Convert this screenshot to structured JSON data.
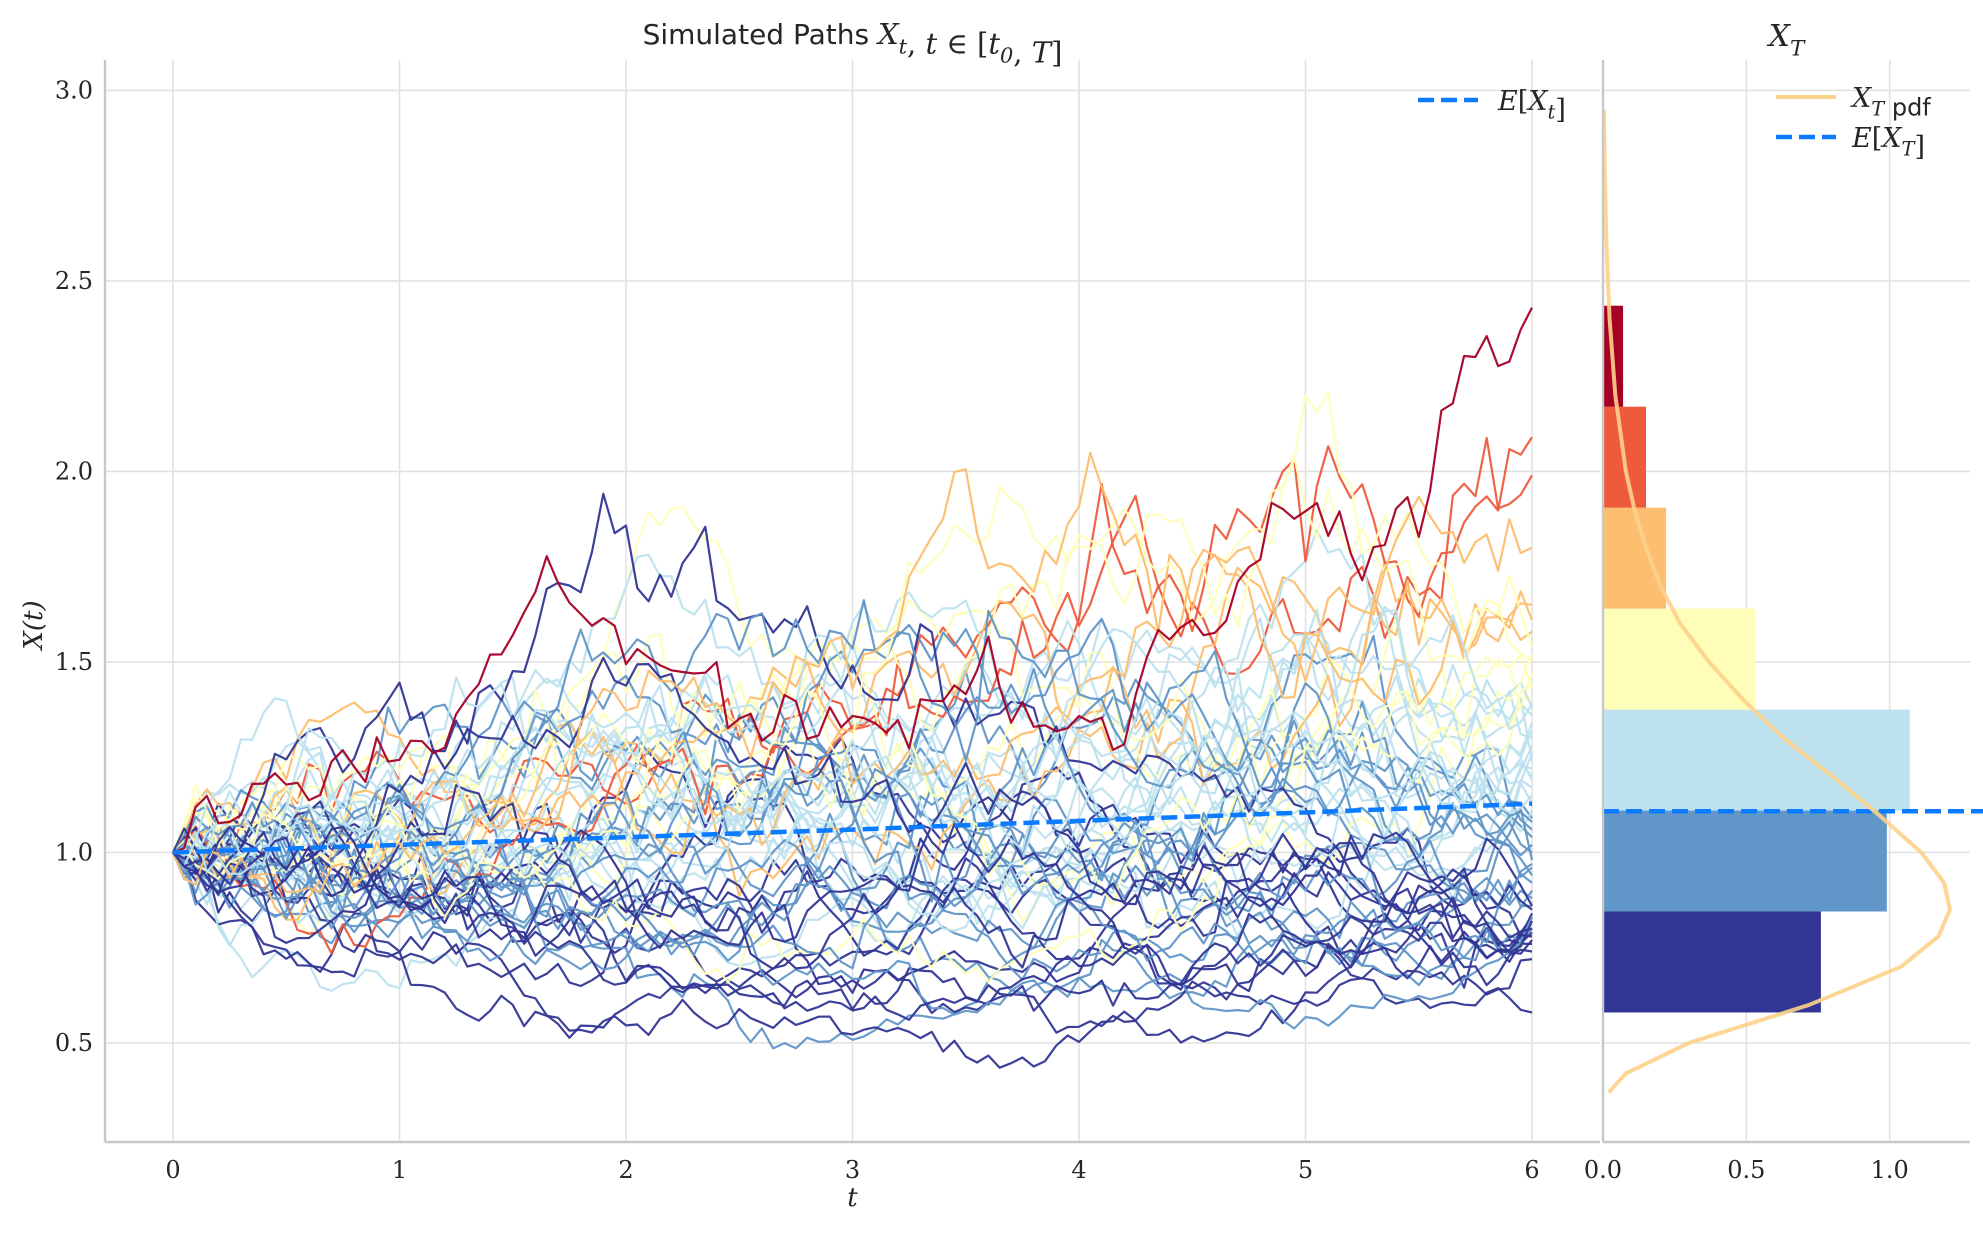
{
  "chart_data": [
    {
      "type": "line",
      "title_prefix": "Simulated Paths",
      "title_math": "X_t, t ∈ [t_0, T]",
      "xlabel": "t",
      "ylabel": "X(t)",
      "xlim": [
        -0.3,
        6.3
      ],
      "ylim": [
        0.24,
        3.08
      ],
      "x_ticks": [
        0,
        1,
        2,
        3,
        4,
        5,
        6
      ],
      "x_tick_labels": [
        "0",
        "1",
        "2",
        "3",
        "4",
        "5",
        "6"
      ],
      "y_ticks": [
        0.5,
        1.0,
        1.5,
        2.0,
        2.5,
        3.0
      ],
      "y_tick_labels": [
        "0.5",
        "1.0",
        "1.5",
        "2.0",
        "2.5",
        "3.0"
      ],
      "grid": true,
      "legend_position": "top-right",
      "legend": [
        {
          "label": "E[X_t]",
          "color": "#0b7bff",
          "style": "dashed"
        }
      ],
      "t_start": 0,
      "t_end": 6,
      "x0": 1.0,
      "expected_path": {
        "x": [
          0,
          1,
          2,
          3,
          4,
          5,
          6
        ],
        "y": [
          1.0,
          1.02,
          1.04,
          1.06,
          1.083,
          1.105,
          1.128
        ],
        "color": "#0b7bff"
      },
      "color_scale": [
        "#313695",
        "#4575b4",
        "#74add1",
        "#abd9e9",
        "#e0f3f8",
        "#ffffbf",
        "#fee090",
        "#fdae61",
        "#f46d43",
        "#d73027",
        "#a50026"
      ],
      "path_colors": [
        "#313695",
        "#313695",
        "#313695",
        "#313695",
        "#313695",
        "#313695",
        "#313695",
        "#313695",
        "#313695",
        "#313695",
        "#313695",
        "#313695",
        "#313695",
        "#313695",
        "#6196c8",
        "#6196c8",
        "#6196c8",
        "#6196c8",
        "#6196c8",
        "#6196c8",
        "#6196c8",
        "#6196c8",
        "#6196c8",
        "#6196c8",
        "#6196c8",
        "#6196c8",
        "#6196c8",
        "#6196c8",
        "#6196c8",
        "#6196c8",
        "#bde2ee",
        "#bde2ee",
        "#bde2ee",
        "#bde2ee",
        "#bde2ee",
        "#bde2ee",
        "#bde2ee",
        "#bde2ee",
        "#bde2ee",
        "#bde2ee",
        "#bde2ee",
        "#bde2ee",
        "#bde2ee",
        "#bde2ee",
        "#bde2ee",
        "#bde2ee",
        "#fefeb9",
        "#fefeb9",
        "#fefeb9",
        "#fefeb9",
        "#fefeb9",
        "#fefeb9",
        "#fefeb9",
        "#fdbe6f",
        "#fdbe6f",
        "#fdbe6f",
        "#fdbe6f",
        "#ee5b3c",
        "#ee5b3c",
        "#a50026"
      ],
      "paths_end_values": [
        0.58,
        0.72,
        0.74,
        0.76,
        0.77,
        0.78,
        0.79,
        0.8,
        0.82,
        0.84,
        0.85,
        0.86,
        0.83,
        0.78,
        0.8,
        0.83,
        0.86,
        0.88,
        0.9,
        0.92,
        0.94,
        0.96,
        0.98,
        1.0,
        1.02,
        1.04,
        1.06,
        0.97,
        1.08,
        1.09,
        1.11,
        1.13,
        1.15,
        1.17,
        1.19,
        1.2,
        1.22,
        1.24,
        1.26,
        1.28,
        1.3,
        1.32,
        1.34,
        1.36,
        1.38,
        1.39,
        1.41,
        1.43,
        1.45,
        1.47,
        1.5,
        1.52,
        1.54,
        1.58,
        1.61,
        1.65,
        1.8,
        1.99,
        2.09,
        2.43
      ],
      "paths_peak": [
        {
          "t": 3.5,
          "x": 2.08,
          "path": "yellow-excursion"
        },
        {
          "t": 5.9,
          "x": 2.5,
          "path": "dark-red"
        },
        {
          "t": 3.72,
          "x": 0.51,
          "path": "lowest-blue"
        }
      ]
    },
    {
      "type": "bar",
      "orientation": "horizontal",
      "title": "X_T",
      "xlim": [
        0,
        1.28
      ],
      "x_ticks": [
        0.0,
        0.5,
        1.0
      ],
      "x_tick_labels": [
        "0.0",
        "0.5",
        "1.0"
      ],
      "grid": true,
      "legend_position": "top-right",
      "legend": [
        {
          "label": "X_T pdf",
          "color": "#fdd28a",
          "style": "solid"
        },
        {
          "label": "E[X_T]",
          "color": "#0b7bff",
          "style": "dashed"
        }
      ],
      "bins": [
        {
          "y0": 0.58,
          "y1": 0.845,
          "density": 0.76,
          "color": "#313695"
        },
        {
          "y0": 0.845,
          "y1": 1.11,
          "density": 0.99,
          "color": "#6196c8"
        },
        {
          "y0": 1.11,
          "y1": 1.375,
          "density": 1.07,
          "color": "#bde2ee"
        },
        {
          "y0": 1.375,
          "y1": 1.64,
          "density": 0.53,
          "color": "#fefeb9"
        },
        {
          "y0": 1.64,
          "y1": 1.905,
          "density": 0.22,
          "color": "#fdbe6f"
        },
        {
          "y0": 1.905,
          "y1": 2.17,
          "density": 0.15,
          "color": "#ee5b3c"
        },
        {
          "y0": 2.17,
          "y1": 2.435,
          "density": 0.07,
          "color": "#a50026"
        }
      ],
      "pdf": {
        "y": [
          0.37,
          0.42,
          0.5,
          0.6,
          0.7,
          0.78,
          0.85,
          0.92,
          1.0,
          1.1,
          1.2,
          1.3,
          1.4,
          1.5,
          1.6,
          1.7,
          1.8,
          1.9,
          2.0,
          2.2,
          2.4,
          2.6,
          2.8,
          2.95
        ],
        "x": [
          0.02,
          0.08,
          0.3,
          0.72,
          1.04,
          1.17,
          1.21,
          1.19,
          1.11,
          0.96,
          0.8,
          0.63,
          0.49,
          0.37,
          0.27,
          0.2,
          0.15,
          0.11,
          0.08,
          0.043,
          0.023,
          0.012,
          0.006,
          0.003
        ],
        "color": "#fdd28a"
      },
      "expected_value": 1.108
    }
  ]
}
